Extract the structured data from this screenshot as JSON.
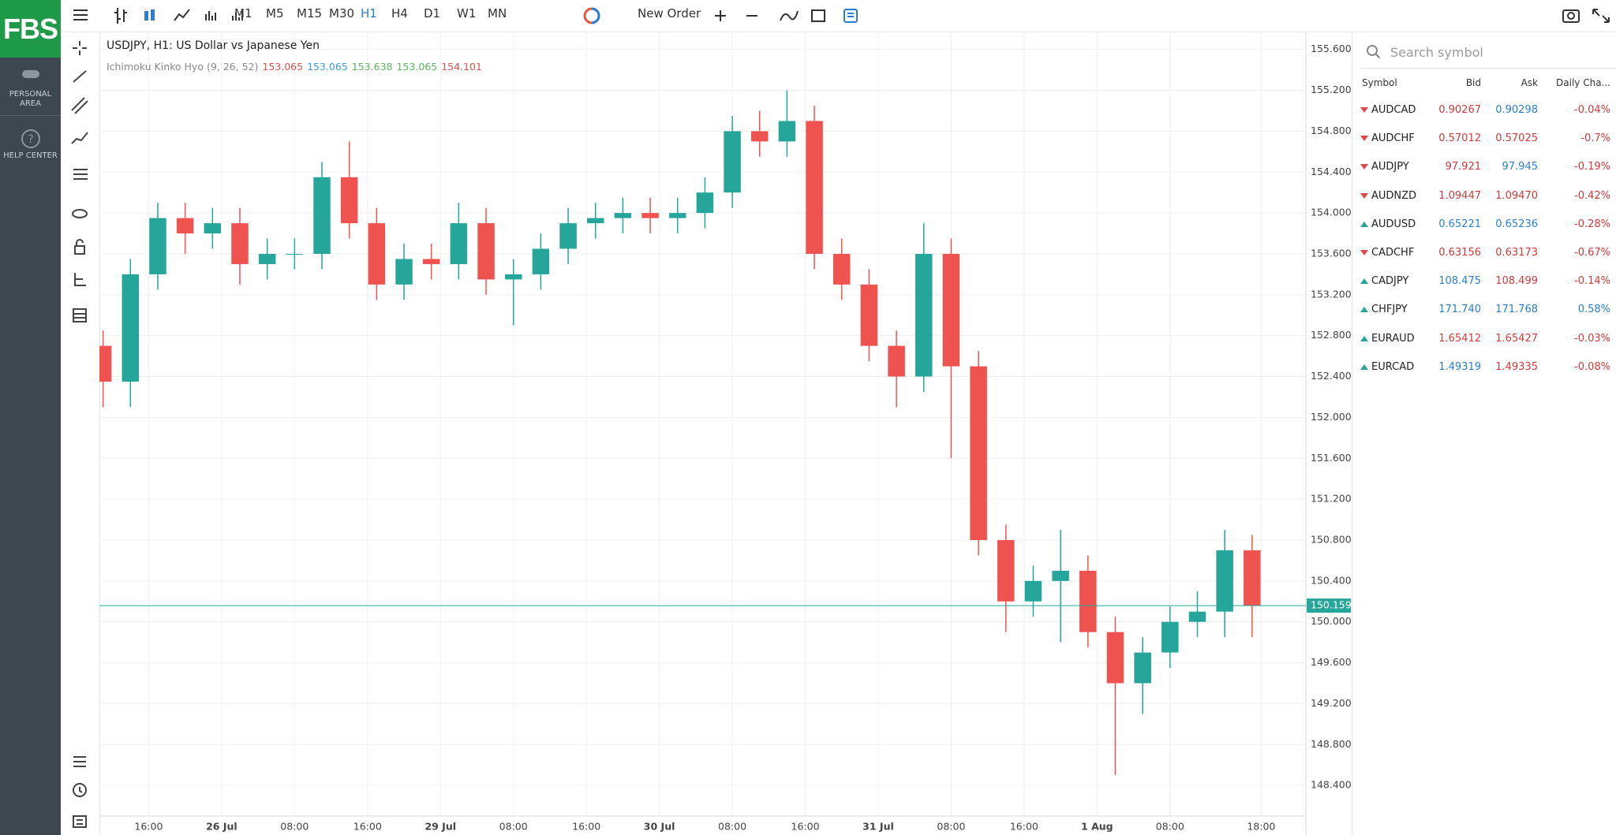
{
  "sidebar": {
    "logo": "FBS",
    "personal": "PERSONAL AREA",
    "help": "HELP CENTER"
  },
  "toolbar": {
    "timeframes": [
      "M1",
      "M5",
      "M15",
      "M30",
      "H1",
      "H4",
      "D1",
      "W1",
      "MN"
    ],
    "active_timeframe": 4,
    "new_order": "New Order"
  },
  "chart_data": {
    "type": "candlestick",
    "title": "USDJPY, H1: US Dollar vs Japanese Yen",
    "indicator": {
      "name": "Ichimoku Kinko Hyo (9, 26, 52)",
      "values": [
        153.065,
        153.065,
        153.638,
        153.065,
        154.101
      ],
      "colors": [
        "#d9534f",
        "#3d9bd8",
        "#5cb85c",
        "#5cb85c",
        "#d9534f"
      ]
    },
    "x": [
      0,
      3,
      6,
      9,
      12,
      15,
      18,
      21,
      24,
      27,
      30,
      33,
      36,
      39,
      42,
      45,
      48,
      51,
      54,
      57,
      60,
      63,
      66,
      69,
      72,
      75,
      78,
      81,
      84,
      87,
      90,
      93,
      96,
      99,
      102,
      105,
      108,
      111,
      114,
      117,
      120,
      123,
      126
    ],
    "open": [
      152.7,
      152.35,
      153.4,
      153.95,
      153.8,
      153.9,
      153.5,
      153.6,
      153.6,
      154.35,
      153.9,
      153.3,
      153.55,
      153.5,
      153.9,
      153.35,
      153.4,
      153.65,
      153.9,
      153.95,
      154.0,
      153.95,
      154.0,
      154.2,
      154.8,
      154.7,
      154.9,
      153.6,
      153.3,
      152.7,
      152.4,
      153.6,
      152.5,
      150.8,
      150.2,
      150.4,
      150.5,
      149.9,
      149.4,
      149.7,
      150.0,
      150.1,
      150.7
    ],
    "high": [
      152.85,
      153.55,
      154.1,
      154.1,
      154.05,
      154.05,
      153.75,
      153.75,
      154.5,
      154.7,
      154.05,
      153.7,
      153.7,
      154.1,
      154.05,
      153.55,
      153.8,
      154.05,
      154.1,
      154.15,
      154.15,
      154.15,
      154.35,
      154.95,
      155.0,
      155.2,
      155.05,
      153.75,
      153.45,
      152.85,
      153.9,
      153.75,
      152.65,
      150.95,
      150.55,
      150.9,
      150.65,
      150.05,
      149.85,
      150.15,
      150.3,
      150.9,
      150.85
    ],
    "low": [
      152.1,
      152.1,
      153.25,
      153.6,
      153.65,
      153.3,
      153.35,
      153.45,
      153.45,
      153.75,
      153.15,
      153.15,
      153.35,
      153.35,
      153.2,
      152.9,
      153.25,
      153.5,
      153.75,
      153.8,
      153.8,
      153.8,
      153.85,
      154.05,
      154.55,
      154.55,
      153.45,
      153.15,
      152.55,
      152.1,
      152.25,
      151.6,
      150.65,
      149.9,
      150.05,
      149.8,
      149.75,
      148.5,
      149.1,
      149.55,
      149.85,
      149.85,
      149.85
    ],
    "close": [
      152.35,
      153.4,
      153.95,
      153.8,
      153.9,
      153.5,
      153.6,
      153.6,
      154.35,
      153.9,
      153.3,
      153.55,
      153.5,
      153.9,
      153.35,
      153.4,
      153.65,
      153.9,
      153.95,
      154.0,
      153.95,
      154.0,
      154.2,
      154.8,
      154.7,
      154.9,
      153.6,
      153.3,
      152.7,
      152.4,
      153.6,
      152.5,
      150.8,
      150.2,
      150.4,
      150.5,
      149.9,
      149.4,
      149.7,
      150.0,
      150.1,
      150.7,
      150.16
    ],
    "up_color": "#26a69a",
    "down_color": "#ef5350",
    "last_price": 150.159,
    "xlim": [
      -0.4,
      131.9
    ],
    "xticks": [
      {
        "value": 5,
        "label": "16:00"
      },
      {
        "value": 13,
        "label": "26 Jul"
      },
      {
        "value": 21,
        "label": "08:00"
      },
      {
        "value": 29,
        "label": "16:00"
      },
      {
        "value": 37,
        "label": "29 Jul"
      },
      {
        "value": 45,
        "label": "08:00"
      },
      {
        "value": 53,
        "label": "16:00"
      },
      {
        "value": 61,
        "label": "30 Jul"
      },
      {
        "value": 69,
        "label": "08:00"
      },
      {
        "value": 77,
        "label": "16:00"
      },
      {
        "value": 85,
        "label": "31 Jul"
      },
      {
        "value": 93,
        "label": "08:00"
      },
      {
        "value": 101,
        "label": "16:00"
      },
      {
        "value": 109,
        "label": "1 Aug"
      },
      {
        "value": 117,
        "label": "08:00"
      },
      {
        "value": 127,
        "label": "18:00"
      }
    ],
    "ylim": [
      148.1,
      155.775
    ],
    "yticks": [
      {
        "value": 148.4,
        "label": "148.400"
      },
      {
        "value": 148.8,
        "label": "148.800"
      },
      {
        "value": 149.2,
        "label": "149.200"
      },
      {
        "value": 149.6,
        "label": "149.600"
      },
      {
        "value": 150.0,
        "label": "150.000"
      },
      {
        "value": 150.4,
        "label": "150.400"
      },
      {
        "value": 150.8,
        "label": "150.800"
      },
      {
        "value": 151.2,
        "label": "151.200"
      },
      {
        "value": 151.6,
        "label": "151.600"
      },
      {
        "value": 152.0,
        "label": "152.000"
      },
      {
        "value": 152.4,
        "label": "152.400"
      },
      {
        "value": 152.8,
        "label": "152.800"
      },
      {
        "value": 153.2,
        "label": "153.200"
      },
      {
        "value": 153.6,
        "label": "153.600"
      },
      {
        "value": 154.0,
        "label": "154.000"
      },
      {
        "value": 154.4,
        "label": "154.400"
      },
      {
        "value": 154.8,
        "label": "154.800"
      },
      {
        "value": 155.2,
        "label": "155.200"
      },
      {
        "value": 155.6,
        "label": "155.600"
      }
    ],
    "grid": true
  },
  "watchlist": {
    "search": "Search symbol",
    "headers": [
      "Symbol",
      "Bid",
      "Ask",
      "Daily Cha..."
    ],
    "rows": [
      {
        "symbol": "AUDCAD",
        "bid": "0.90267",
        "ask": "0.90298",
        "change": "-0.04%",
        "arrow": "#e04848",
        "bid_color": "#d23a3a",
        "ask_color": "#2a7fd4",
        "change_color": "#d23a3a"
      },
      {
        "symbol": "AUDCHF",
        "bid": "0.57012",
        "ask": "0.57025",
        "change": "-0.7%",
        "arrow": "#e04848",
        "bid_color": "#d23a3a",
        "ask_color": "#d23a3a",
        "change_color": "#d23a3a"
      },
      {
        "symbol": "AUDJPY",
        "bid": "97.921",
        "ask": "97.945",
        "change": "-0.19%",
        "arrow": "#e04848",
        "bid_color": "#d23a3a",
        "ask_color": "#2a7fd4",
        "change_color": "#d23a3a"
      },
      {
        "symbol": "AUDNZD",
        "bid": "1.09447",
        "ask": "1.09470",
        "change": "-0.42%",
        "arrow": "#e04848",
        "bid_color": "#d23a3a",
        "ask_color": "#d23a3a",
        "change_color": "#d23a3a"
      },
      {
        "symbol": "AUDUSD",
        "bid": "0.65221",
        "ask": "0.65236",
        "change": "-0.28%",
        "arrow": "#26a69a",
        "bid_color": "#2a7fd4",
        "ask_color": "#2a7fd4",
        "change_color": "#d23a3a"
      },
      {
        "symbol": "CADCHF",
        "bid": "0.63156",
        "ask": "0.63173",
        "change": "-0.67%",
        "arrow": "#e04848",
        "bid_color": "#d23a3a",
        "ask_color": "#d23a3a",
        "change_color": "#d23a3a"
      },
      {
        "symbol": "CADJPY",
        "bid": "108.475",
        "ask": "108.499",
        "change": "-0.14%",
        "arrow": "#26a69a",
        "bid_color": "#2a7fd4",
        "ask_color": "#d23a3a",
        "change_color": "#d23a3a"
      },
      {
        "symbol": "CHFJPY",
        "bid": "171.740",
        "ask": "171.768",
        "change": "0.58%",
        "arrow": "#26a69a",
        "bid_color": "#2a7fd4",
        "ask_color": "#2a7fd4",
        "change_color": "#2a7fd4"
      },
      {
        "symbol": "EURAUD",
        "bid": "1.65412",
        "ask": "1.65427",
        "change": "-0.03%",
        "arrow": "#26a69a",
        "bid_color": "#d23a3a",
        "ask_color": "#d23a3a",
        "change_color": "#d23a3a"
      },
      {
        "symbol": "EURCAD",
        "bid": "1.49319",
        "ask": "1.49335",
        "change": "-0.08%",
        "arrow": "#26a69a",
        "bid_color": "#2a7fd4",
        "ask_color": "#d23a3a",
        "change_color": "#d23a3a"
      }
    ]
  }
}
